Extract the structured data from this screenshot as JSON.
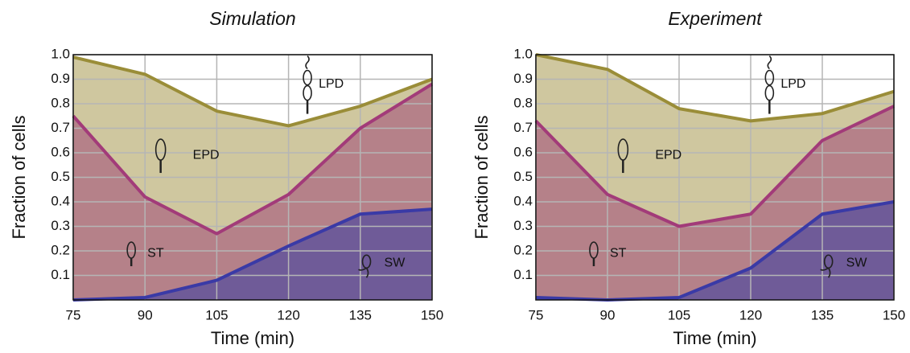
{
  "chart_data": [
    {
      "type": "stacked-area",
      "title": "Simulation",
      "x_label": "Time (min)",
      "y_label": "Fraction of cells",
      "x": [
        75,
        90,
        105,
        120,
        135,
        150
      ],
      "series": [
        {
          "name": "SW",
          "color": "#3a3aa6",
          "fill": "#6f5b98",
          "values": [
            0.0,
            0.01,
            0.08,
            0.22,
            0.35,
            0.37
          ]
        },
        {
          "name": "ST",
          "color": "#a23b79",
          "fill": "#b58189",
          "values": [
            0.75,
            0.41,
            0.19,
            0.21,
            0.35,
            0.51
          ]
        },
        {
          "name": "EPD",
          "color": "#9a8d38",
          "fill": "#cfc79f",
          "values": [
            0.24,
            0.5,
            0.5,
            0.28,
            0.09,
            0.02
          ]
        }
      ],
      "annotations": [
        "LPD"
      ],
      "xlim": [
        75,
        150
      ],
      "xticks": [
        75,
        90,
        105,
        120,
        135,
        150
      ],
      "ylim": [
        0,
        1
      ],
      "yticks": [
        0.1,
        0.2,
        0.3,
        0.4,
        0.5,
        0.6,
        0.7,
        0.8,
        0.9,
        {
          "value": 1,
          "label": "1.0"
        }
      ],
      "grid": true
    },
    {
      "type": "stacked-area",
      "title": "Experiment",
      "x_label": "Time (min)",
      "y_label": "Fraction of cells",
      "x": [
        75,
        90,
        105,
        120,
        135,
        150
      ],
      "series": [
        {
          "name": "SW",
          "color": "#3a3aa6",
          "fill": "#6f5b98",
          "values": [
            0.01,
            0.0,
            0.01,
            0.13,
            0.35,
            0.4
          ]
        },
        {
          "name": "ST",
          "color": "#a23b79",
          "fill": "#b58189",
          "values": [
            0.72,
            0.43,
            0.29,
            0.22,
            0.3,
            0.39
          ]
        },
        {
          "name": "EPD",
          "color": "#9a8d38",
          "fill": "#cfc79f",
          "values": [
            0.27,
            0.51,
            0.48,
            0.38,
            0.11,
            0.06
          ]
        }
      ],
      "annotations": [
        "LPD"
      ],
      "xlim": [
        75,
        150
      ],
      "xticks": [
        75,
        90,
        105,
        120,
        135,
        150
      ],
      "ylim": [
        0,
        1
      ],
      "yticks": [
        0.1,
        0.2,
        0.3,
        0.4,
        0.5,
        0.6,
        0.7,
        0.8,
        0.9,
        {
          "value": 1,
          "label": "1.0"
        }
      ],
      "grid": true
    }
  ]
}
